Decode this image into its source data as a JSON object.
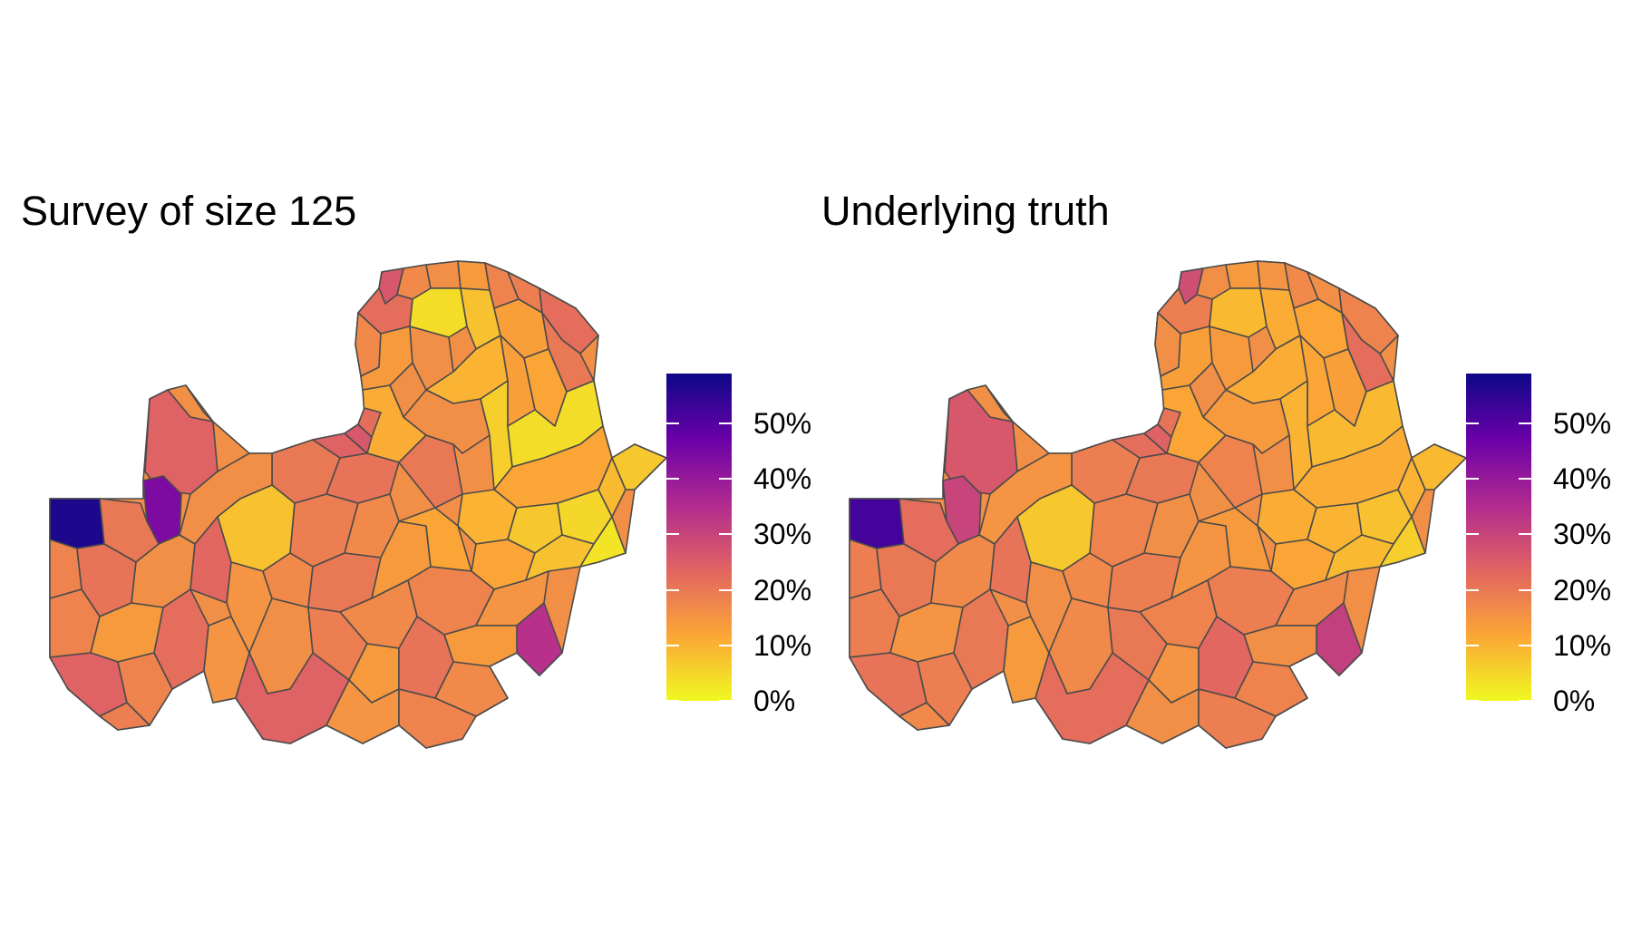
{
  "panels": [
    {
      "id": "survey",
      "title": "Survey of size 125",
      "legend": {
        "ticks": [
          "0%",
          "10%",
          "20%",
          "30%",
          "40%",
          "50%"
        ],
        "tick_values": [
          0,
          10,
          20,
          30,
          40,
          50
        ],
        "range_percent": [
          0,
          59
        ],
        "colormap": "plasma (reversed)",
        "colors": [
          "#f0f921",
          "#fca636",
          "#e16462",
          "#b12a90",
          "#6a00a8",
          "#0d0887"
        ]
      },
      "region_values_percent": {
        "north-tip": 26,
        "north-1": 17,
        "north-2": 16,
        "north-3": 14,
        "north-4": 18,
        "north-5": 19,
        "north-6": 22,
        "north-w1": 22,
        "north-w2": 17,
        "north-c1": 4,
        "north-c2": 8,
        "north-c3": 13,
        "north-e1": 20,
        "north-e2": 12,
        "luapula-1": 14,
        "luapula-2": 11,
        "luapula-3": 16,
        "luapula-4": 10,
        "luapula-5": 13,
        "luapula-6": 20,
        "central-n1": 16,
        "central-n2": 6,
        "central-n3": 4,
        "central-e1": 12,
        "central-e2": 9,
        "central-e3": 7,
        "eastern-1": 10,
        "eastern-2": 7,
        "eastern-3": 5,
        "eastern-4": 12,
        "eastern-5": 8,
        "eastern-6": 3,
        "copperbelt-1": 20,
        "copperbelt-2": 24,
        "copperbelt-3": 21,
        "copperbelt-4": 26,
        "copperbelt-5": 22,
        "nw-1": 24,
        "nw-2": 44,
        "nw-3": 16,
        "nw-4": 8,
        "nw-5": 19,
        "nw-6": 17,
        "west-1": 57,
        "west-2": 20,
        "west-3": 18,
        "west-4": 21,
        "west-5": 16,
        "west-6": 23,
        "west-7": 18,
        "west-8": 14,
        "southwest-1": 24,
        "southwest-2": 18,
        "southwest-3": 22,
        "southwest-4": 15,
        "southwest-5": 19,
        "central-1": 15,
        "central-2": 17,
        "central-3": 20,
        "central-4": 14,
        "central-5": 12,
        "lusaka-1": 18,
        "lusaka-2": 15,
        "lusaka-3": 34,
        "lusaka-4": 17,
        "lusaka-5": 14,
        "south-1": 16,
        "south-2": 19,
        "south-3": 14,
        "south-4": 21,
        "south-5": 17,
        "south-6": 24,
        "south-7": 15,
        "south-8": 18
      }
    },
    {
      "id": "truth",
      "title": "Underlying truth",
      "legend": {
        "ticks": [
          "0%",
          "10%",
          "20%",
          "30%",
          "40%",
          "50%"
        ],
        "tick_values": [
          0,
          10,
          20,
          30,
          40,
          50
        ],
        "range_percent": [
          0,
          59
        ],
        "colormap": "plasma (reversed)",
        "colors": [
          "#f0f921",
          "#fca636",
          "#e16462",
          "#b12a90",
          "#6a00a8",
          "#0d0887"
        ]
      },
      "region_values_percent": {
        "north-tip": 28,
        "north-1": 16,
        "north-2": 14,
        "north-3": 15,
        "north-4": 17,
        "north-5": 16,
        "north-6": 18,
        "north-w1": 19,
        "north-w2": 16,
        "north-c1": 9,
        "north-c2": 11,
        "north-c3": 12,
        "north-e1": 22,
        "north-e2": 13,
        "luapula-1": 13,
        "luapula-2": 12,
        "luapula-3": 14,
        "luapula-4": 11,
        "luapula-5": 12,
        "luapula-6": 18,
        "central-n1": 14,
        "central-n2": 10,
        "central-n3": 9,
        "central-e1": 11,
        "central-e2": 10,
        "central-e3": 9,
        "eastern-1": 11,
        "eastern-2": 10,
        "eastern-3": 8,
        "eastern-4": 12,
        "eastern-5": 9,
        "eastern-6": 6,
        "copperbelt-1": 19,
        "copperbelt-2": 22,
        "copperbelt-3": 20,
        "copperbelt-4": 24,
        "copperbelt-5": 21,
        "nw-1": 26,
        "nw-2": 30,
        "nw-3": 15,
        "nw-4": 7,
        "nw-5": 18,
        "nw-6": 16,
        "west-1": 52,
        "west-2": 22,
        "west-3": 19,
        "west-4": 20,
        "west-5": 17,
        "west-6": 21,
        "west-7": 19,
        "west-8": 15,
        "southwest-1": 21,
        "southwest-2": 19,
        "southwest-3": 20,
        "southwest-4": 14,
        "southwest-5": 17,
        "central-1": 16,
        "central-2": 17,
        "central-3": 19,
        "central-4": 15,
        "central-5": 14,
        "lusaka-1": 19,
        "lusaka-2": 17,
        "lusaka-3": 31,
        "lusaka-4": 18,
        "lusaka-5": 16,
        "south-1": 17,
        "south-2": 20,
        "south-3": 15,
        "south-4": 23,
        "south-5": 18,
        "south-6": 22,
        "south-7": 16,
        "south-8": 19
      }
    }
  ]
}
